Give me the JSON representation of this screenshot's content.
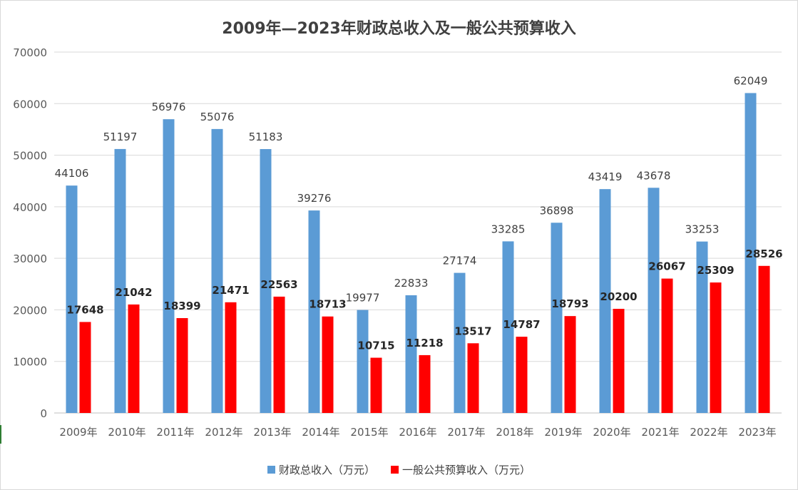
{
  "chart_data": {
    "type": "bar",
    "title": "2009年—2023年财政总收入及一般公共预算收入",
    "categories": [
      "2009年",
      "2010年",
      "2011年",
      "2012年",
      "2013年",
      "2014年",
      "2015年",
      "2016年",
      "2017年",
      "2018年",
      "2019年",
      "2020年",
      "2021年",
      "2022年",
      "2023年"
    ],
    "series": [
      {
        "name": "财政总收入（万元）",
        "color": "#5b9bd5",
        "label_style": "normal",
        "values": [
          44106,
          51197,
          56976,
          55076,
          51183,
          39276,
          19977,
          22833,
          27174,
          33285,
          36898,
          43419,
          43678,
          33253,
          62049
        ]
      },
      {
        "name": "一般公共预算收入（万元）",
        "color": "#ff0000",
        "label_style": "bold",
        "values": [
          17648,
          21042,
          18399,
          21471,
          22563,
          18713,
          10715,
          11218,
          13517,
          14787,
          18793,
          20200,
          26067,
          25309,
          28526
        ]
      }
    ],
    "ylim": [
      0,
      70000
    ],
    "yticks": [
      "0",
      "10000",
      "20000",
      "30000",
      "40000",
      "50000",
      "60000",
      "70000"
    ],
    "grid": true,
    "legend": "bottom"
  }
}
